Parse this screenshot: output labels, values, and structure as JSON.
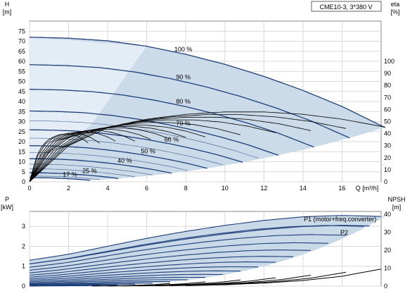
{
  "chart_data": [
    {
      "id": "head",
      "type": "line",
      "product_label": "CME10-3, 3*380 V",
      "y_label_top": "H",
      "y_unit": "[m]",
      "y2_label_top": "eta",
      "y2_unit": "[%]",
      "x_label": "Q [m³/h]",
      "xlim": [
        0,
        18
      ],
      "ylim": [
        0,
        80
      ],
      "y2lim": [
        0,
        133.3
      ],
      "x_ticks": [
        "0",
        "2",
        "4",
        "6",
        "8",
        "10",
        "12",
        "14",
        "16"
      ],
      "x_tick_values": [
        0,
        2,
        4,
        6,
        8,
        10,
        12,
        14,
        16
      ],
      "y_ticks": [
        "0",
        "5",
        "10",
        "15",
        "20",
        "25",
        "30",
        "35",
        "40",
        "45",
        "50",
        "55",
        "60",
        "65",
        "70",
        "75"
      ],
      "y_tick_values": [
        0,
        5,
        10,
        15,
        20,
        25,
        30,
        35,
        40,
        45,
        50,
        55,
        60,
        65,
        70,
        75
      ],
      "y2_ticks": [
        "0",
        "10",
        "20",
        "30",
        "40",
        "50",
        "60",
        "70",
        "80",
        "90",
        "100"
      ],
      "y2_tick_values": [
        0,
        10,
        20,
        30,
        40,
        50,
        60,
        70,
        80,
        90,
        100
      ],
      "grid": true,
      "speed_labels": [
        "100 %",
        "90 %",
        "80 %",
        "70 %",
        "60 %",
        "50 %",
        "40 %",
        "25 %",
        "17 %"
      ],
      "speed_fractions": [
        1.0,
        0.9,
        0.8,
        0.7,
        0.6,
        0.5,
        0.4,
        0.25,
        0.17
      ],
      "speed_label_flow": [
        7.8,
        7.8,
        7.8,
        7.8,
        7.2,
        6.0,
        4.8,
        3.0,
        2.0
      ],
      "head_curve_at_full_speed": {
        "flow": [
          0,
          2,
          4,
          6,
          8,
          10,
          12,
          14,
          16,
          18
        ],
        "head": [
          72,
          71.5,
          70.2,
          67.5,
          63.5,
          58.5,
          52.5,
          45.5,
          37.5,
          28
        ]
      },
      "operating_limit_flow_at_full_speed": 18.2,
      "efficiency_curve_at_full_speed": {
        "flow": [
          0,
          2,
          4,
          6,
          8,
          10,
          12,
          14,
          16,
          18
        ],
        "eta": [
          0,
          30,
          45,
          52,
          56,
          58,
          58,
          56,
          52,
          46
        ]
      }
    },
    {
      "id": "power-npsh",
      "type": "line",
      "y_label_top": "P",
      "y_unit": "[kW]",
      "y2_label_top": "NPSH",
      "y2_unit": "[m]",
      "xlim": [
        0,
        18
      ],
      "ylim": [
        0,
        3.75
      ],
      "y2lim": [
        0,
        41.5
      ],
      "y_ticks": [
        "0",
        "1",
        "2",
        "3"
      ],
      "y_tick_values": [
        0,
        1,
        2,
        3
      ],
      "y2_ticks": [
        "0",
        "10",
        "20",
        "30",
        "40"
      ],
      "y2_tick_values": [
        0,
        10,
        20,
        30,
        40
      ],
      "grid": true,
      "series_labels": [
        "P1 (motor+freq.converter)",
        "P2"
      ],
      "p1_at_full_speed": {
        "flow": [
          0,
          2,
          4,
          6,
          8,
          10,
          12,
          14,
          16,
          18
        ],
        "power": [
          1.3,
          1.6,
          2.0,
          2.4,
          2.75,
          3.05,
          3.3,
          3.48,
          3.55,
          3.5
        ]
      },
      "p2_ratio": 0.86,
      "npsh": {
        "flow": [
          8,
          10,
          12,
          14,
          16,
          18
        ],
        "npsh": [
          0.3,
          0.8,
          1.7,
          3.1,
          5.5,
          9.5
        ]
      }
    }
  ]
}
